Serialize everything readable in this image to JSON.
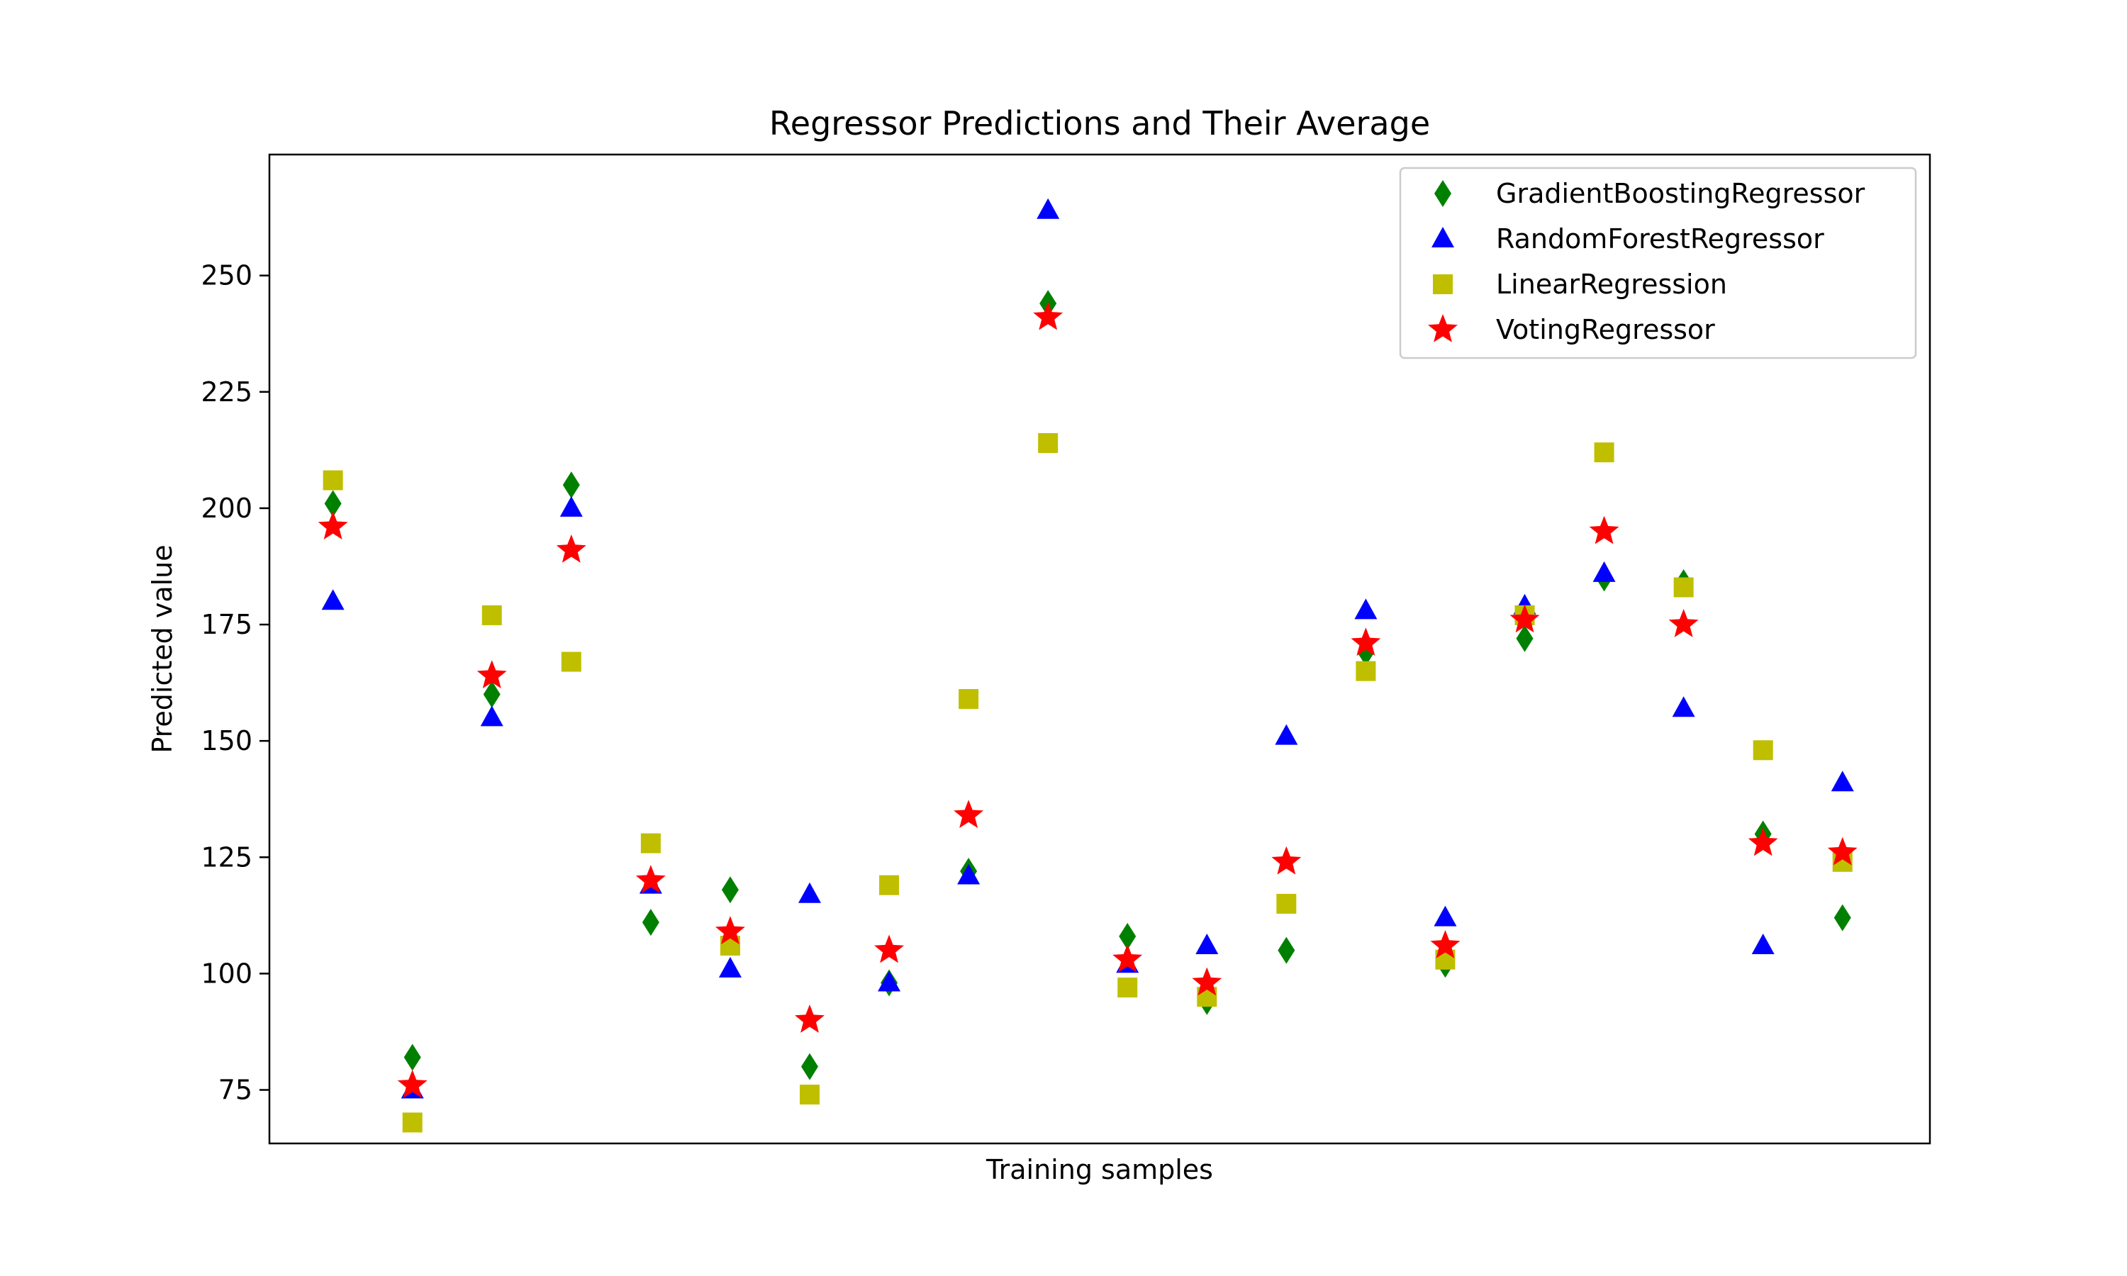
{
  "chart_data": {
    "type": "scatter",
    "title": "Regressor Predictions and Their Average",
    "xlabel": "Training samples",
    "ylabel": "Predicted value",
    "ylim": [
      63.5,
      276
    ],
    "xlim": [
      -0.8,
      20.1
    ],
    "yticks": [
      75,
      100,
      125,
      150,
      175,
      200,
      225,
      250
    ],
    "grid": false,
    "legend_position": "top-right",
    "x": [
      0,
      1,
      2,
      3,
      4,
      5,
      6,
      7,
      8,
      9,
      10,
      11,
      12,
      13,
      14,
      15,
      16,
      17,
      18,
      19
    ],
    "series": [
      {
        "name": "GradientBoostingRegressor",
        "marker": "diamond",
        "color": "#008000",
        "values": [
          201,
          82,
          160,
          205,
          111,
          118,
          80,
          98,
          122,
          244,
          108,
          94,
          105,
          169,
          102,
          172,
          185,
          184,
          130,
          112
        ]
      },
      {
        "name": "RandomForestRegressor",
        "marker": "triangle",
        "color": "#0000ff",
        "values": [
          180,
          75,
          155,
          200,
          119,
          101,
          117,
          98,
          121,
          264,
          102,
          106,
          151,
          178,
          112,
          179,
          186,
          157,
          106,
          141
        ]
      },
      {
        "name": "LinearRegression",
        "marker": "square",
        "color": "#bfbf00",
        "values": [
          206,
          68,
          177,
          167,
          128,
          106,
          74,
          119,
          159,
          214,
          97,
          95,
          115,
          165,
          103,
          177,
          212,
          183,
          148,
          124
        ]
      },
      {
        "name": "VotingRegressor",
        "marker": "star",
        "color": "#ff0000",
        "values": [
          196,
          76,
          164,
          191,
          120,
          109,
          90,
          105,
          134,
          241,
          103,
          98,
          124,
          171,
          106,
          176,
          195,
          175,
          128,
          126
        ]
      }
    ]
  }
}
